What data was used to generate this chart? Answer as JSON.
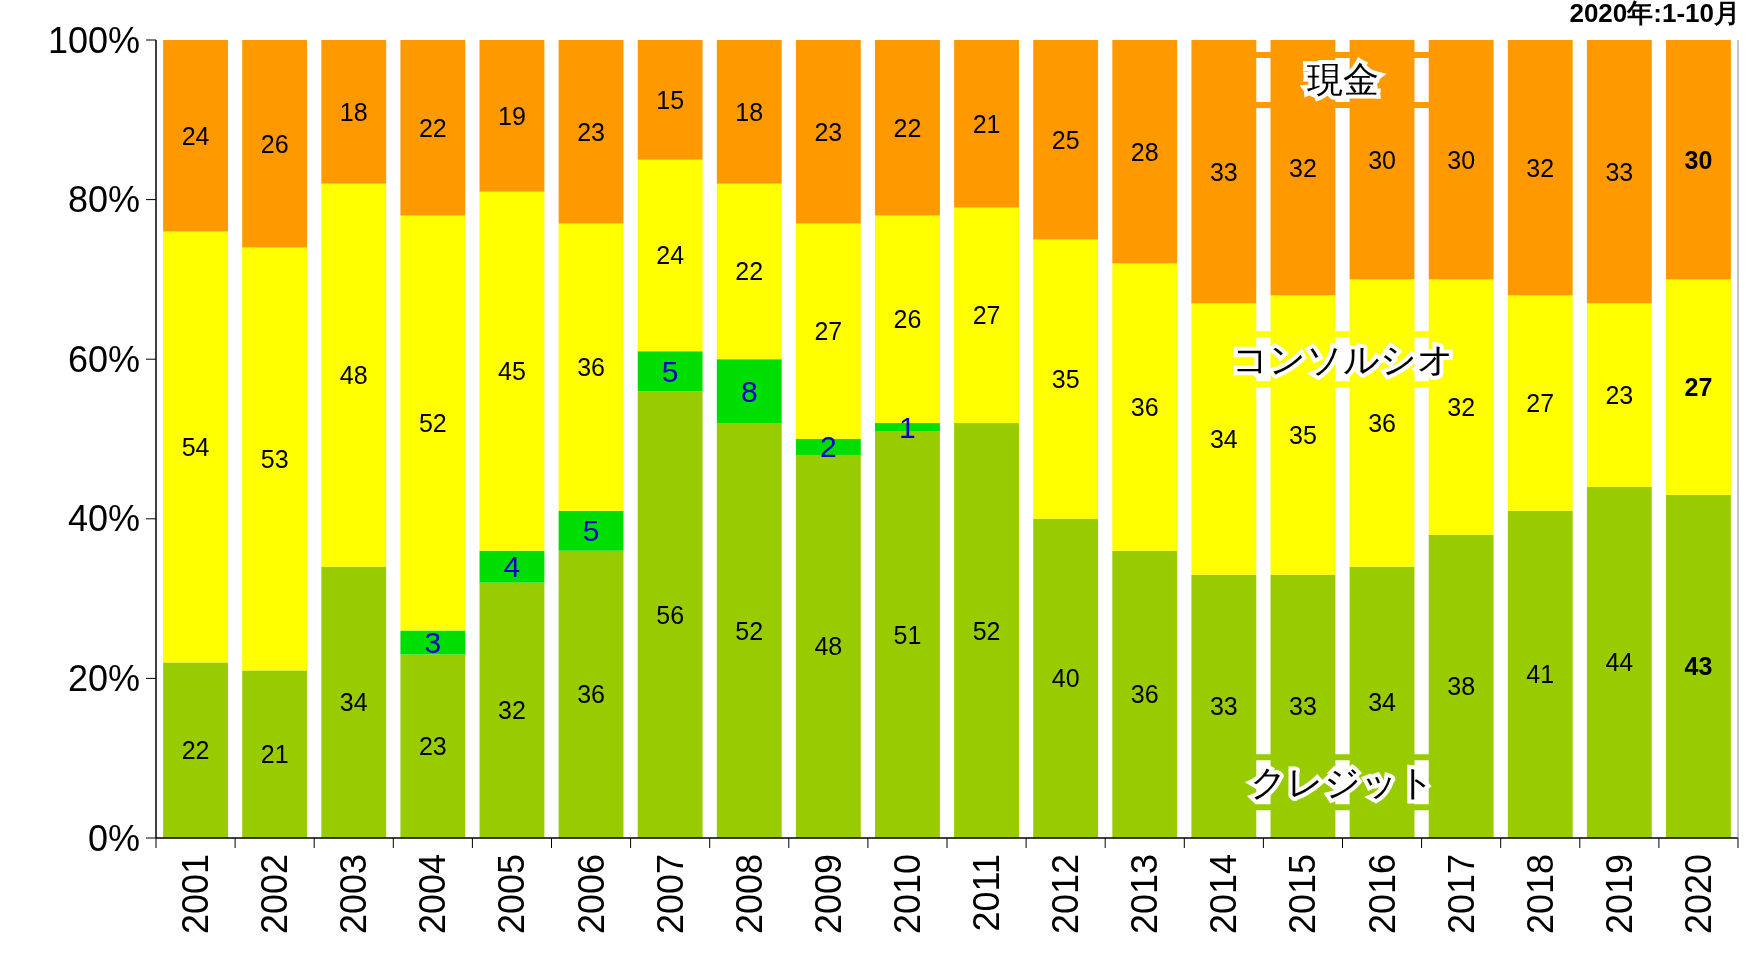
{
  "chart_data": {
    "type": "bar",
    "stacked": true,
    "categories": [
      "2001",
      "2002",
      "2003",
      "2004",
      "2005",
      "2006",
      "2007",
      "2008",
      "2009",
      "2010",
      "2011",
      "2012",
      "2013",
      "2014",
      "2015",
      "2016",
      "2017",
      "2018",
      "2019",
      "2020"
    ],
    "series": [
      {
        "name": "クレジット",
        "color": "#99cc00",
        "values": [
          22,
          21,
          34,
          23,
          32,
          36,
          56,
          52,
          48,
          51,
          52,
          40,
          36,
          33,
          33,
          34,
          38,
          41,
          44,
          43
        ]
      },
      {
        "color": "#00dd00",
        "values": [
          null,
          null,
          null,
          3,
          4,
          5,
          5,
          8,
          2,
          1,
          null,
          null,
          null,
          null,
          null,
          null,
          null,
          null,
          null,
          null
        ]
      },
      {
        "name": "コンソルシオ",
        "color": "#ffff00",
        "values": [
          54,
          53,
          48,
          52,
          45,
          36,
          24,
          22,
          27,
          26,
          27,
          35,
          36,
          34,
          35,
          36,
          32,
          27,
          23,
          27
        ]
      },
      {
        "name": "現金",
        "color": "#ff9900",
        "values": [
          24,
          26,
          18,
          22,
          19,
          23,
          15,
          18,
          23,
          22,
          21,
          25,
          28,
          33,
          32,
          30,
          30,
          32,
          33,
          30
        ]
      }
    ],
    "ylim": [
      0,
      100
    ],
    "yticks": [
      {
        "value": 0,
        "label": "0%"
      },
      {
        "value": 20,
        "label": "20%"
      },
      {
        "value": 40,
        "label": "40%"
      },
      {
        "value": 60,
        "label": "60%"
      },
      {
        "value": 80,
        "label": "80%"
      },
      {
        "value": 100,
        "label": "100%"
      }
    ],
    "data_labels": true,
    "grid": false,
    "annotations": [
      "2020年:1-10月"
    ]
  }
}
